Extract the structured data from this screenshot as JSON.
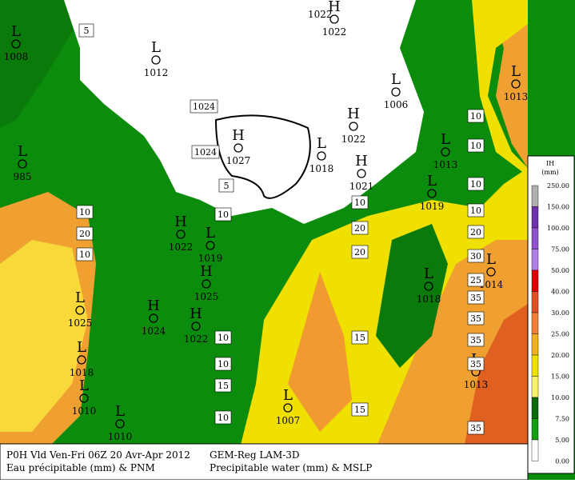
{
  "footer": {
    "left_line1": "P0H Vld Ven-Fri 06Z 20 Avr-Apr 2012",
    "left_line2": "Eau précipitable (mm) & PNM",
    "right_line1": "GEM-Reg LAM-3D",
    "right_line2": "Precipitable water (mm) & MSLP"
  },
  "legend": {
    "title": "IH",
    "unit": "(mm)",
    "levels": [
      "250.00",
      "150.00",
      "100.00",
      "75.00",
      "50.00",
      "40.00",
      "30.00",
      "25.00",
      "20.00",
      "15.00",
      "10.00",
      "7.50",
      "5.00",
      "0.00"
    ]
  },
  "pressure_systems": [
    {
      "symbol": "L",
      "value": "1008"
    },
    {
      "symbol": "L",
      "value": "1012"
    },
    {
      "symbol": "H",
      "value": "1022"
    },
    {
      "symbol": "L",
      "value": "1006"
    },
    {
      "symbol": "L",
      "value": "1013"
    },
    {
      "symbol": "L",
      "value": "985"
    },
    {
      "symbol": "H",
      "value": "1027"
    },
    {
      "symbol": "L",
      "value": "1018"
    },
    {
      "symbol": "H",
      "value": "1022"
    },
    {
      "symbol": "H",
      "value": "1021"
    },
    {
      "symbol": "L",
      "value": "1013"
    },
    {
      "symbol": "L",
      "value": "1019"
    },
    {
      "symbol": "H",
      "value": "1022"
    },
    {
      "symbol": "L",
      "value": "1019"
    },
    {
      "symbol": "H",
      "value": "1025"
    },
    {
      "symbol": "H",
      "value": "1024"
    },
    {
      "symbol": "H",
      "value": "1022"
    },
    {
      "symbol": "L",
      "value": "1025"
    },
    {
      "symbol": "L",
      "value": "1018"
    },
    {
      "symbol": "L",
      "value": "1010"
    },
    {
      "symbol": "L",
      "value": "1010"
    },
    {
      "symbol": "L",
      "value": "1007"
    },
    {
      "symbol": "L",
      "value": "1018"
    },
    {
      "symbol": "L",
      "value": "1014"
    },
    {
      "symbol": "L",
      "value": "1013"
    }
  ],
  "isobar_labels": [
    "1022"
  ],
  "contour_labels": [
    "5",
    "1024",
    "1024",
    "5",
    "10",
    "10",
    "20",
    "10",
    "10",
    "20",
    "20",
    "10",
    "10",
    "10",
    "10",
    "20",
    "30",
    "25",
    "35",
    "35",
    "35",
    "35",
    "35",
    "40",
    "15",
    "15",
    "10",
    "10",
    "15",
    "10"
  ]
}
